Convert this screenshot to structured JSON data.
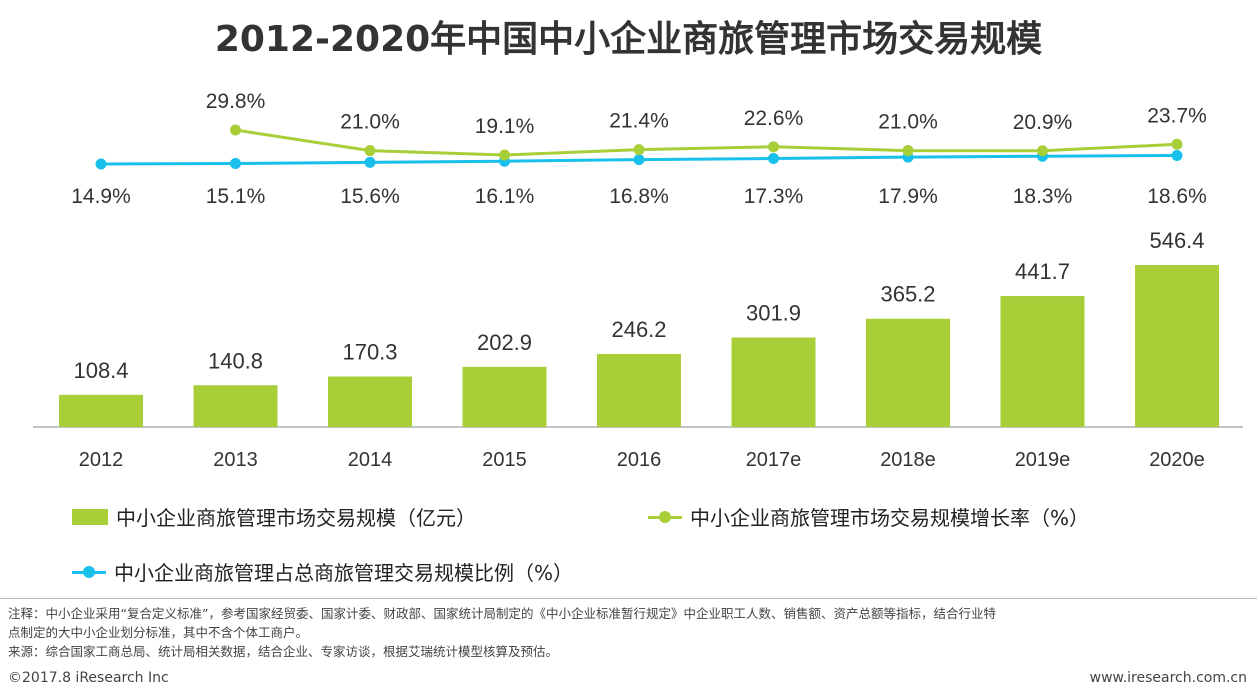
{
  "title": "2012-2020年中国中小企业商旅管理市场交易规模",
  "colors": {
    "bar": "#a8cf38",
    "growth": "#a8cf38",
    "share": "#19c0eb"
  },
  "chart_data": {
    "type": "bar",
    "title": "2012-2020年中国中小企业商旅管理市场交易规模",
    "categories": [
      "2012",
      "2013",
      "2014",
      "2015",
      "2016",
      "2017e",
      "2018e",
      "2019e",
      "2020e"
    ],
    "series": [
      {
        "name": "中小企业商旅管理市场交易规模（亿元）",
        "kind": "bar",
        "values": [
          108.4,
          140.8,
          170.3,
          202.9,
          246.2,
          301.9,
          365.2,
          441.7,
          546.4
        ],
        "labels": [
          "108.4",
          "140.8",
          "170.3",
          "202.9",
          "246.2",
          "301.9",
          "365.2",
          "441.7",
          "546.4"
        ]
      },
      {
        "name": "中小企业商旅管理市场交易规模增长率（%）",
        "kind": "line",
        "values": [
          null,
          29.8,
          21.0,
          19.1,
          21.4,
          22.6,
          21.0,
          20.9,
          23.7
        ],
        "labels": [
          null,
          "29.8%",
          "21.0%",
          "19.1%",
          "21.4%",
          "22.6%",
          "21.0%",
          "20.9%",
          "23.7%"
        ]
      },
      {
        "name": "中小企业商旅管理占总商旅管理交易规模比例（%）",
        "kind": "line",
        "values": [
          14.9,
          15.1,
          15.6,
          16.1,
          16.8,
          17.3,
          17.9,
          18.3,
          18.6
        ],
        "labels": [
          "14.9%",
          "15.1%",
          "15.6%",
          "16.1%",
          "16.8%",
          "17.3%",
          "17.9%",
          "18.3%",
          "18.6%"
        ]
      }
    ],
    "bar_ylim": [
      0,
      600
    ]
  },
  "legend": {
    "bar": "中小企业商旅管理市场交易规模（亿元）",
    "growth": "中小企业商旅管理市场交易规模增长率（%）",
    "share": "中小企业商旅管理占总商旅管理交易规模比例（%）"
  },
  "notes": {
    "line1": "注释：中小企业采用“复合定义标准”，参考国家经贸委、国家计委、财政部、国家统计局制定的《中小企业标准暂行规定》中企业职工人数、销售额、资产总额等指标，结合行业特",
    "line2": "点制定的大中小企业划分标准，其中不含个体工商户。",
    "line3": "来源：综合国家工商总局、统计局相关数据，结合企业、专家访谈，根据艾瑞统计模型核算及预估。"
  },
  "footer": {
    "copyright": "©2017.8 iResearch Inc",
    "url": "www.iresearch.com.cn"
  }
}
